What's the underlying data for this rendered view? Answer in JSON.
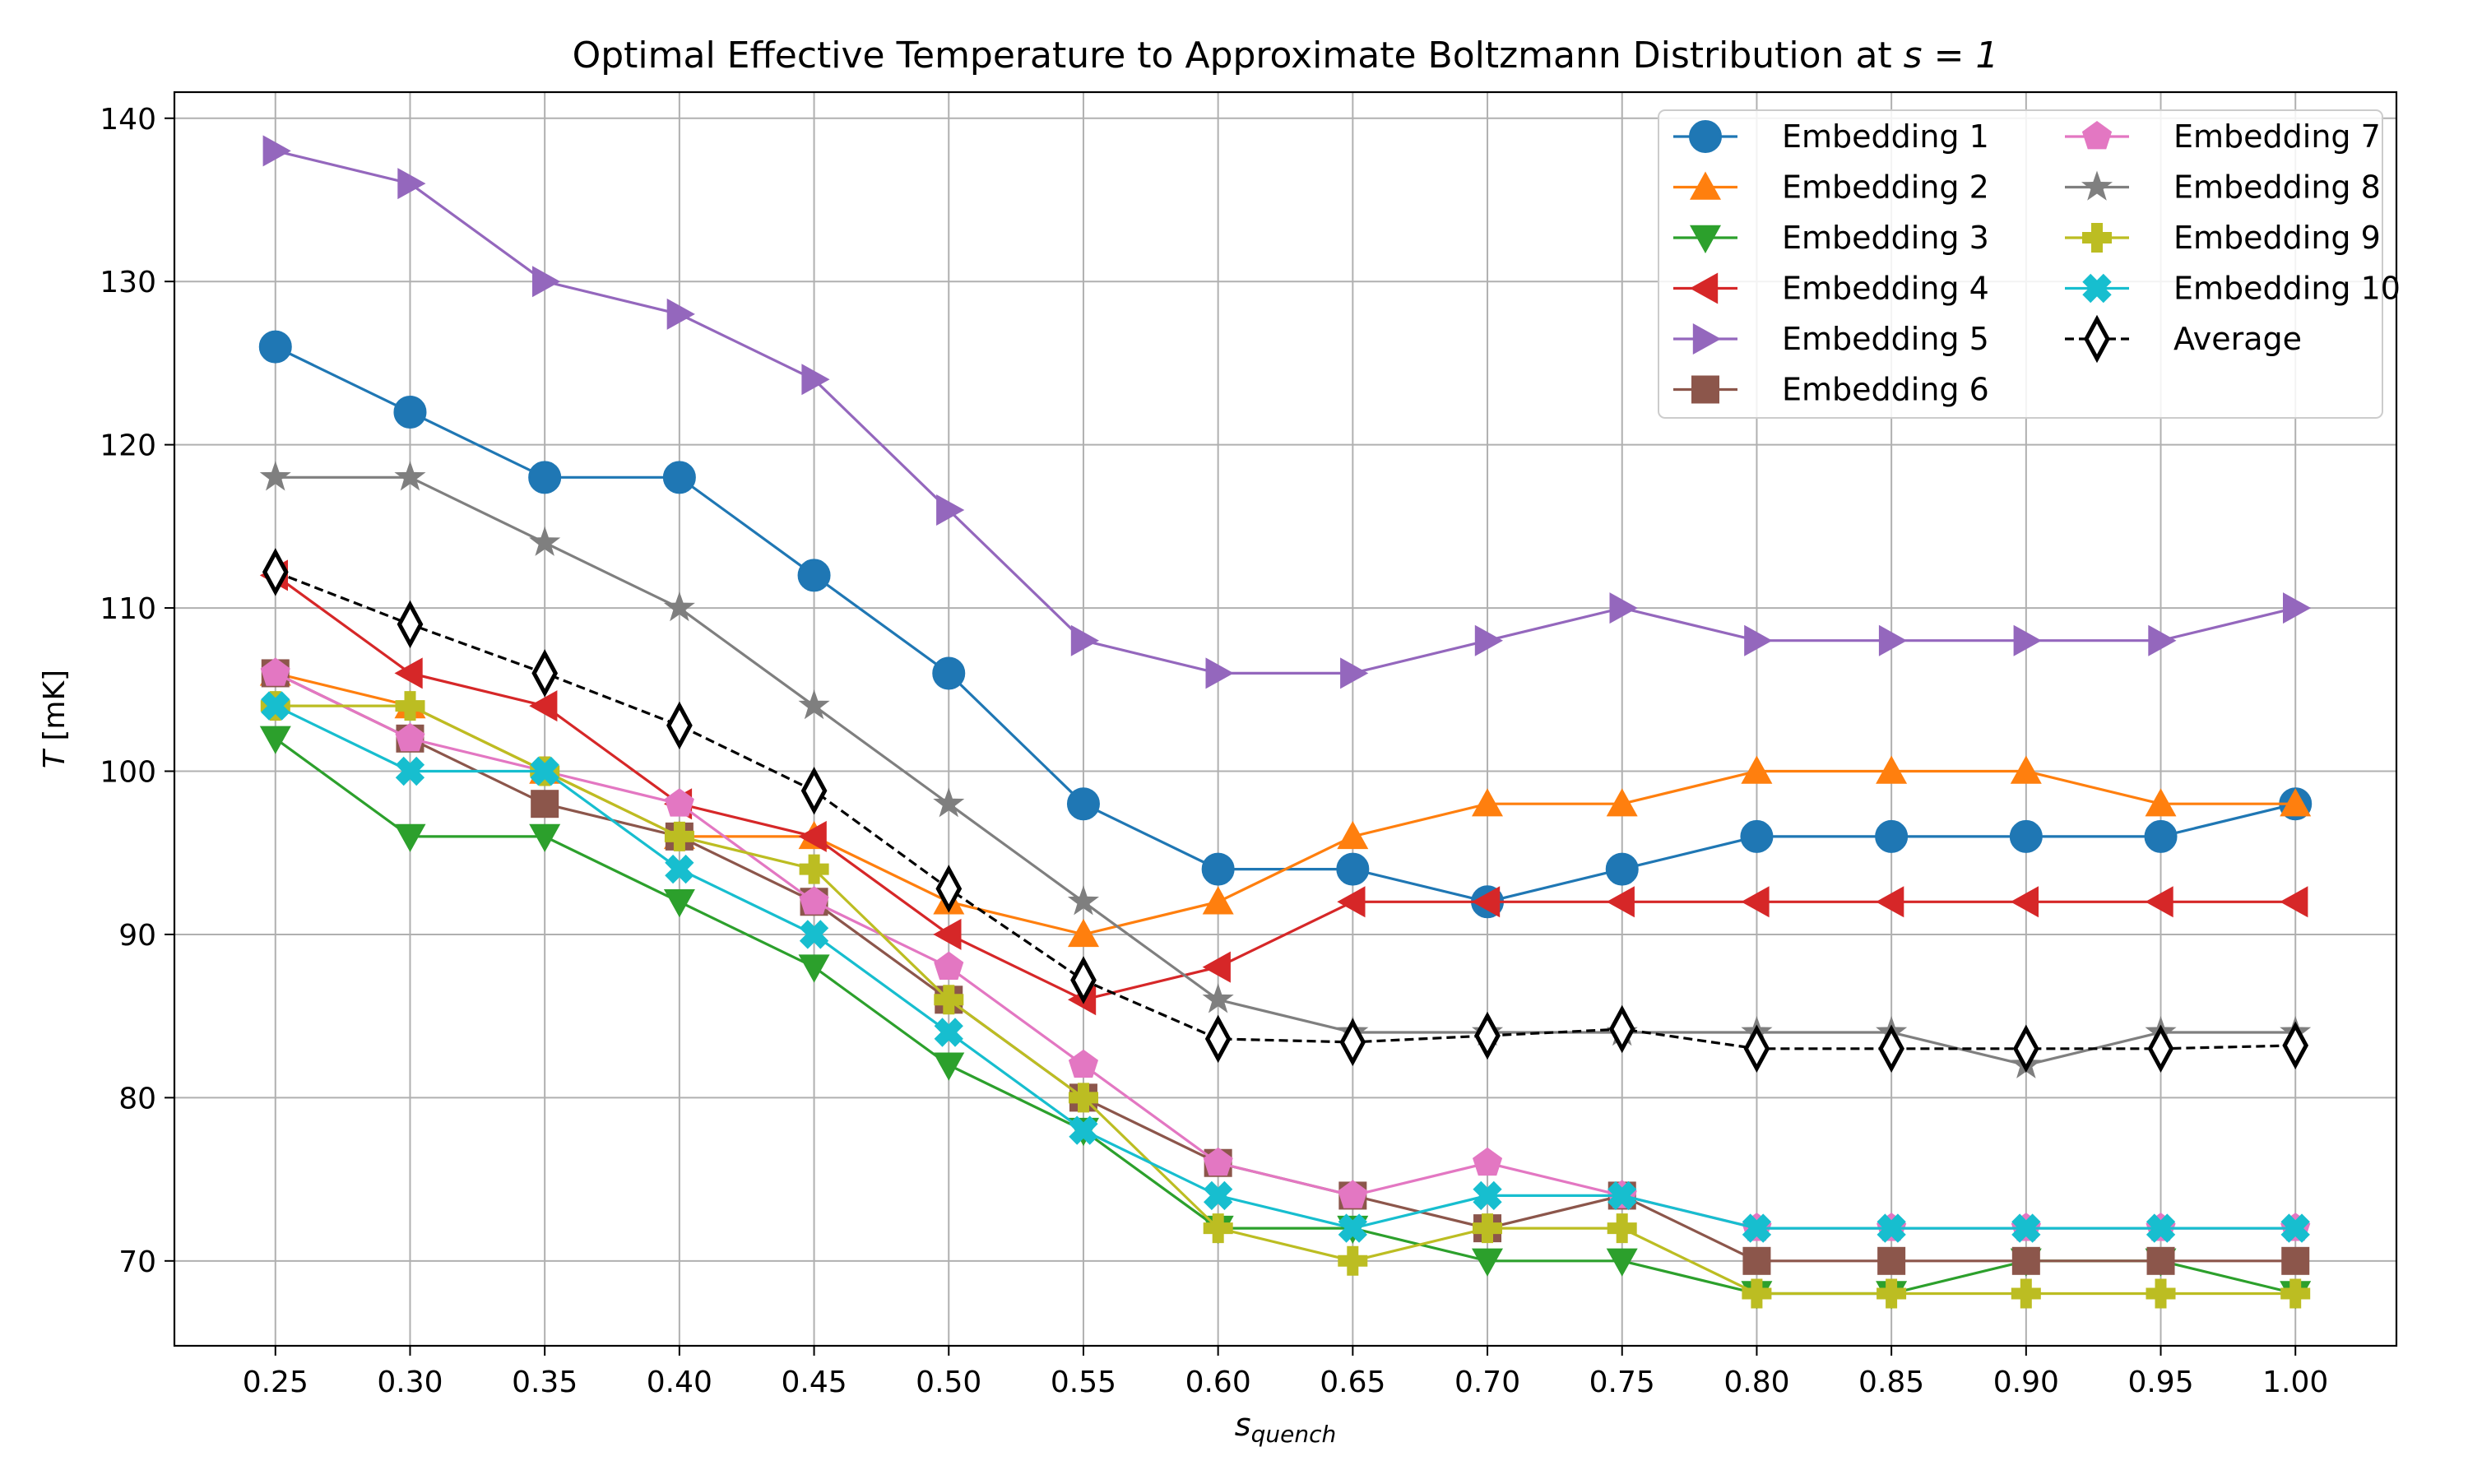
{
  "chart_data": {
    "type": "line",
    "title": "Optimal Effective Temperature to Approximate Boltzmann Distribution at ",
    "title_math": "s = 1",
    "xlabel": "s",
    "xlabel_sub": "quench",
    "ylabel_var": "T",
    "ylabel_unit": " [mK]",
    "x": [
      0.25,
      0.3,
      0.35,
      0.4,
      0.45,
      0.5,
      0.55,
      0.6,
      0.65,
      0.7,
      0.75,
      0.8,
      0.85,
      0.9,
      0.95,
      1.0
    ],
    "x_tick_labels": [
      "0.25",
      "0.30",
      "0.35",
      "0.40",
      "0.45",
      "0.50",
      "0.55",
      "0.60",
      "0.65",
      "0.70",
      "0.75",
      "0.80",
      "0.85",
      "0.90",
      "0.95",
      "1.00"
    ],
    "y_ticks": [
      70,
      80,
      90,
      100,
      110,
      120,
      130,
      140
    ],
    "y_tick_labels": [
      "70",
      "80",
      "90",
      "100",
      "110",
      "120",
      "130",
      "140"
    ],
    "xlim": [
      0.2125,
      1.0375
    ],
    "ylim": [
      64.8,
      141.6
    ],
    "grid": true,
    "legend_position": "top-right",
    "series": [
      {
        "name": "Embedding 1",
        "color": "#1f77b4",
        "marker": "circle",
        "dash": "solid",
        "values": [
          126,
          122,
          118,
          118,
          112,
          106,
          98,
          94,
          94,
          92,
          94,
          96,
          96,
          96,
          96,
          98
        ]
      },
      {
        "name": "Embedding 2",
        "color": "#ff7f0e",
        "marker": "triangle-up",
        "dash": "solid",
        "values": [
          106,
          104,
          100,
          96,
          96,
          92,
          90,
          92,
          96,
          98,
          98,
          100,
          100,
          100,
          98,
          98
        ]
      },
      {
        "name": "Embedding 3",
        "color": "#2ca02c",
        "marker": "triangle-down",
        "dash": "solid",
        "values": [
          102,
          96,
          96,
          92,
          88,
          82,
          78,
          72,
          72,
          70,
          70,
          68,
          68,
          70,
          70,
          68
        ]
      },
      {
        "name": "Embedding 4",
        "color": "#d62728",
        "marker": "triangle-left",
        "dash": "solid",
        "values": [
          112,
          106,
          104,
          98,
          96,
          90,
          86,
          88,
          92,
          92,
          92,
          92,
          92,
          92,
          92,
          92
        ]
      },
      {
        "name": "Embedding 5",
        "color": "#9467bd",
        "marker": "triangle-right",
        "dash": "solid",
        "values": [
          138,
          136,
          130,
          128,
          124,
          116,
          108,
          106,
          106,
          108,
          110,
          108,
          108,
          108,
          108,
          110
        ]
      },
      {
        "name": "Embedding 6",
        "color": "#8c564b",
        "marker": "square",
        "dash": "solid",
        "values": [
          106,
          102,
          98,
          96,
          92,
          86,
          80,
          76,
          74,
          72,
          74,
          70,
          70,
          70,
          70,
          70
        ]
      },
      {
        "name": "Embedding 7",
        "color": "#e377c2",
        "marker": "pentagon",
        "dash": "solid",
        "values": [
          106,
          102,
          100,
          98,
          92,
          88,
          82,
          76,
          74,
          76,
          74,
          72,
          72,
          72,
          72,
          72
        ]
      },
      {
        "name": "Embedding 8",
        "color": "#7f7f7f",
        "marker": "star",
        "dash": "solid",
        "values": [
          118,
          118,
          114,
          110,
          104,
          98,
          92,
          86,
          84,
          84,
          84,
          84,
          84,
          82,
          84,
          84
        ]
      },
      {
        "name": "Embedding 9",
        "color": "#bcbd22",
        "marker": "plus",
        "dash": "solid",
        "values": [
          104,
          104,
          100,
          96,
          94,
          86,
          80,
          72,
          70,
          72,
          72,
          68,
          68,
          68,
          68,
          68
        ]
      },
      {
        "name": "Embedding 10",
        "color": "#17becf",
        "marker": "x",
        "dash": "solid",
        "values": [
          104,
          100,
          100,
          94,
          90,
          84,
          78,
          74,
          72,
          74,
          74,
          72,
          72,
          72,
          72,
          72
        ]
      },
      {
        "name": "Average",
        "color": "#000000",
        "marker": "thin-diamond",
        "dash": "dashed",
        "values": [
          112.2,
          109,
          106,
          102.8,
          98.8,
          92.8,
          87.2,
          83.6,
          83.4,
          83.8,
          84.2,
          83,
          83,
          83,
          83,
          83.2
        ]
      }
    ]
  }
}
